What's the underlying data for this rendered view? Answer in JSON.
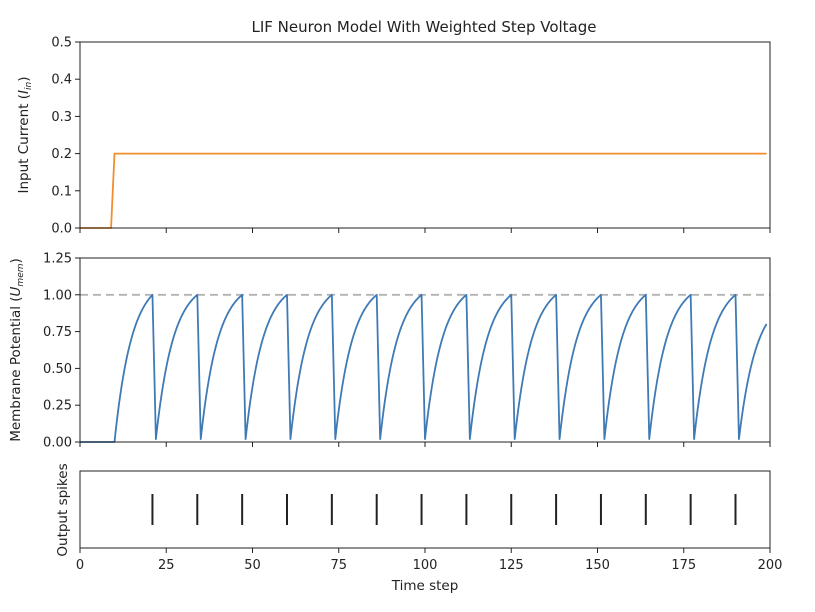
{
  "figure": {
    "title": "LIF Neuron Model With Weighted Step Voltage"
  },
  "colors": {
    "input_current": "#f28e2b",
    "membrane": "#3f7ab5",
    "threshold": "#b3b3b3",
    "spikes": "#222222"
  },
  "chart_data": [
    {
      "type": "line",
      "panel": "input-current",
      "title": "LIF Neuron Model With Weighted Step Voltage",
      "ylabel_main": "Input Current (",
      "ylabel_symbol": "I",
      "ylabel_sub": "in",
      "ylabel_end": ")",
      "xlim": [
        0,
        200
      ],
      "ylim": [
        0,
        0.5
      ],
      "yticks": [
        0.0,
        0.1,
        0.2,
        0.3,
        0.4,
        0.5
      ],
      "ytick_labels": [
        "0.0",
        "0.1",
        "0.2",
        "0.3",
        "0.4",
        "0.5"
      ],
      "series": [
        {
          "x": [
            0,
            9,
            10,
            199
          ],
          "y": [
            0,
            0,
            0.2,
            0.2
          ]
        }
      ]
    },
    {
      "type": "line",
      "panel": "membrane-potential",
      "ylabel_main": "Membrane Potential (",
      "ylabel_symbol": "U",
      "ylabel_sub": "mem",
      "ylabel_end": ")",
      "xlim": [
        0,
        200
      ],
      "ylim": [
        0,
        1.25
      ],
      "yticks": [
        0.0,
        0.25,
        0.5,
        0.75,
        1.0,
        1.25
      ],
      "ytick_labels": [
        "0.00",
        "0.25",
        "0.50",
        "0.75",
        "1.00",
        "1.25"
      ],
      "threshold": 1.0,
      "input_start": 10,
      "end_step": 199,
      "spike_times": [
        21,
        34,
        47,
        60,
        73,
        86,
        99,
        112,
        125,
        138,
        151,
        164,
        177,
        190
      ],
      "reset_value": 0.02,
      "rise_constant": 0.2,
      "approx_values": [
        {
          "x": 0,
          "y": 0.0
        },
        {
          "x": 10,
          "y": 0.0
        },
        {
          "x": 21,
          "y": 1.0
        },
        {
          "x": 22,
          "y": 0.02
        },
        {
          "x": 34,
          "y": 1.0
        },
        {
          "x": 199,
          "y": 0.89
        }
      ]
    },
    {
      "type": "raster",
      "panel": "output-spikes",
      "ylabel": "Output spikes",
      "xlabel": "Time step",
      "xlim": [
        0,
        200
      ],
      "xticks": [
        0,
        25,
        50,
        75,
        100,
        125,
        150,
        175,
        200
      ],
      "xtick_labels": [
        "0",
        "25",
        "50",
        "75",
        "100",
        "125",
        "150",
        "175",
        "200"
      ],
      "spike_times": [
        21,
        34,
        47,
        60,
        73,
        86,
        99,
        112,
        125,
        138,
        151,
        164,
        177,
        190
      ]
    }
  ]
}
